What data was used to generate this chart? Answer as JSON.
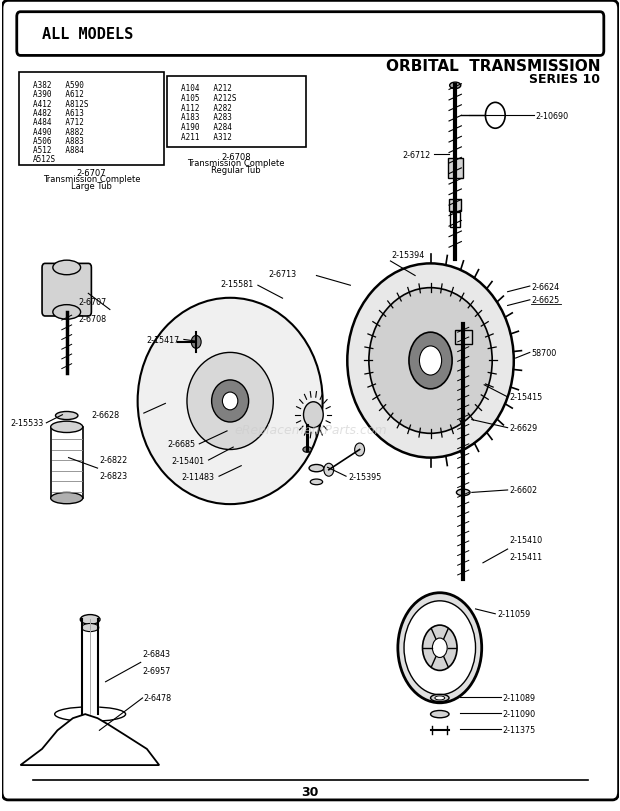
{
  "title": "ORBITAL  TRANSMISSION",
  "subtitle": "SERIES 10",
  "header_label": "ALL MODELS",
  "page_number": "30",
  "watermark": "eReplacementParts.com",
  "bg_color": "#ffffff",
  "models_left": [
    "A382   A590",
    "A390   A612",
    "A412   A812S",
    "A482   A613",
    "A484   A712",
    "A490   A882",
    "A506   A883",
    "A512   A884",
    "A512S"
  ],
  "models_right": [
    "A104   A212",
    "A105   A212S",
    "A112   A282",
    "A183   A283",
    "A190   A284",
    "A211   A312"
  ],
  "part_left_num": "2-6707",
  "part_left_desc1": "Transmission Complete",
  "part_left_desc2": "Large Tub",
  "part_right_num": "2-6708",
  "part_right_desc1": "Transmission Complete",
  "part_right_desc2": "Regular Tub"
}
